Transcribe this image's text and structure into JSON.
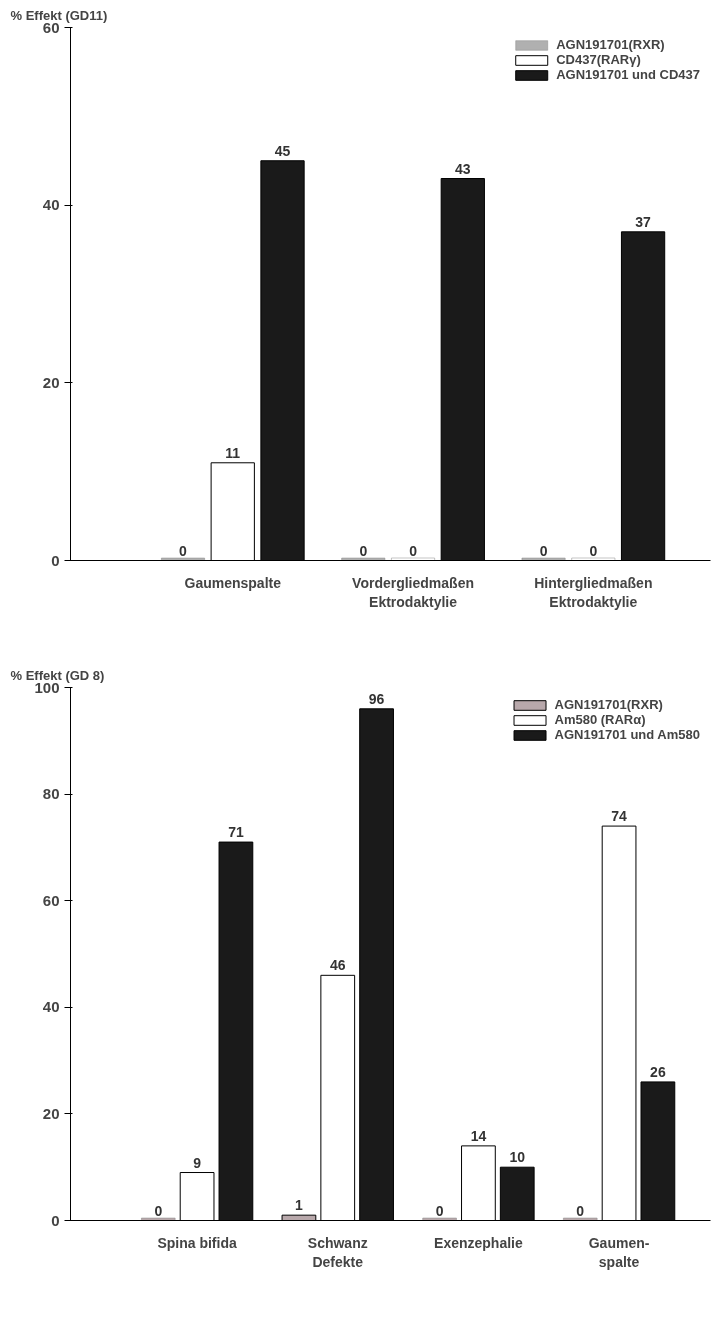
{
  "chart_data": [
    {
      "type": "bar",
      "ylabel": "% Effekt (GD11)",
      "categories": [
        "Gaumenspalte",
        "Vordergliedmaßen\nEktrodaktylie",
        "Hintergliedmaßen\nEktrodaktylie"
      ],
      "series": [
        {
          "name": "AGN191701(RXR)",
          "color": "#b0b0b0",
          "values": [
            0,
            0,
            0
          ],
          "value_labels": [
            "0",
            "0",
            "0"
          ]
        },
        {
          "name": "CD437(RARγ)",
          "color": "#ffffff",
          "values": [
            11,
            0,
            0
          ],
          "value_labels": [
            "11",
            "0",
            "0"
          ]
        },
        {
          "name": "AGN191701 und CD437",
          "color": "#1a1a1a",
          "values": [
            45,
            43,
            37
          ],
          "value_labels": [
            "45",
            "43",
            "37"
          ]
        }
      ],
      "ylim": [
        0,
        60
      ],
      "yticks": [
        0,
        20,
        40,
        60
      ],
      "legend": "top right",
      "grid": false
    },
    {
      "type": "bar",
      "ylabel": "% Effekt (GD 8)",
      "categories": [
        "Spina bifida",
        "Schwanz\nDefekte",
        "Exenzephalie",
        "Gaumen-\nspalte"
      ],
      "series": [
        {
          "name": "AGN191701(RXR)",
          "color": "#b8a8ab",
          "values": [
            0,
            1,
            0,
            0
          ],
          "value_labels": [
            "0",
            "1",
            "0",
            "0"
          ]
        },
        {
          "name": "Am580 (RARα)",
          "color": "#ffffff",
          "values": [
            9,
            46,
            14,
            74
          ],
          "value_labels": [
            "9",
            "46",
            "14",
            "74"
          ]
        },
        {
          "name": "AGN191701 und Am580",
          "color": "#1a1a1a",
          "values": [
            71,
            96,
            10,
            26
          ],
          "value_labels": [
            "71",
            "96",
            "10",
            "26"
          ]
        }
      ],
      "ylim": [
        0,
        100
      ],
      "yticks": [
        0,
        20,
        40,
        60,
        80,
        100
      ],
      "legend": "top right",
      "grid": false
    }
  ]
}
